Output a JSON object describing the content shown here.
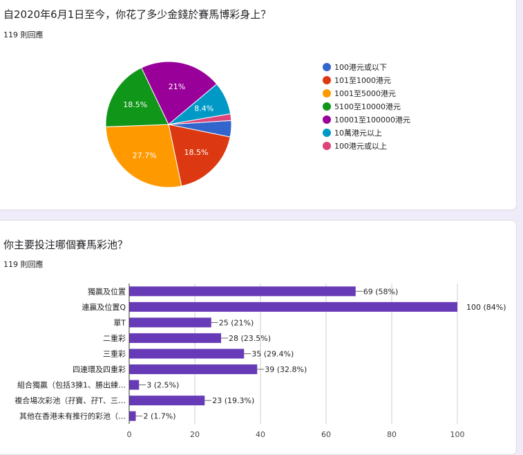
{
  "questions": [
    {
      "title": "自2020年6月1日至今，你花了多少金錢於賽馬博彩身上？",
      "responses": "119 則回應"
    },
    {
      "title": "你主要投注哪個賽馬彩池？",
      "responses": "119 則回應"
    }
  ],
  "chart_data": [
    {
      "type": "pie",
      "slices": [
        {
          "label": "100港元或以下",
          "value": 4.2,
          "pct_label": "",
          "color": "#3366cc"
        },
        {
          "label": "101至1000港元",
          "value": 18.5,
          "pct_label": "18.5%",
          "color": "#dc3912"
        },
        {
          "label": "1001至5000港元",
          "value": 27.7,
          "pct_label": "27.7%",
          "color": "#ff9900"
        },
        {
          "label": "5100至10000港元",
          "value": 18.5,
          "pct_label": "18.5%",
          "color": "#109618"
        },
        {
          "label": "10001至100000港元",
          "value": 21.0,
          "pct_label": "21%",
          "color": "#990099"
        },
        {
          "label": "10萬港元以上",
          "value": 8.4,
          "pct_label": "8.4%",
          "color": "#0099c6"
        },
        {
          "label": "100港元或以上",
          "value": 1.7,
          "pct_label": "",
          "color": "#dd4477"
        }
      ],
      "legend_position": "right"
    },
    {
      "type": "bar",
      "orientation": "horizontal",
      "color": "#673ab7",
      "categories": [
        "獨贏及位置",
        "連贏及位置Q",
        "單T",
        "二重彩",
        "三重彩",
        "四連環及四重彩",
        "組合獨贏（包括3揀1、勝出練…",
        "複合場次彩池（孖寶、孖T、三…",
        "其他在香港未有推行的彩池（…"
      ],
      "values": [
        69,
        100,
        25,
        28,
        35,
        39,
        3,
        23,
        2
      ],
      "data_labels": [
        "69 (58%)",
        "100 (84%)",
        "25 (21%)",
        "28 (23.5%)",
        "35 (29.4%)",
        "39 (32.8%)",
        "3 (2.5%)",
        "23 (19.3%)",
        "2 (1.7%)"
      ],
      "x_ticks": [
        "0",
        "20",
        "40",
        "60",
        "80",
        "100"
      ],
      "xlim": [
        0,
        100
      ],
      "grid": true
    }
  ]
}
